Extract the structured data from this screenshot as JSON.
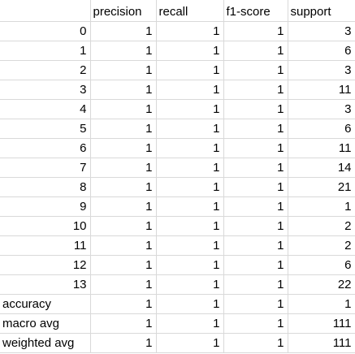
{
  "header": [
    "",
    "precision",
    "recall",
    "f1-score",
    "support"
  ],
  "rows": [
    {
      "label": "0",
      "precision": "1",
      "recall": "1",
      "f1": "1",
      "support": "3",
      "label_is_number": true
    },
    {
      "label": "1",
      "precision": "1",
      "recall": "1",
      "f1": "1",
      "support": "6",
      "label_is_number": true
    },
    {
      "label": "2",
      "precision": "1",
      "recall": "1",
      "f1": "1",
      "support": "3",
      "label_is_number": true
    },
    {
      "label": "3",
      "precision": "1",
      "recall": "1",
      "f1": "1",
      "support": "11",
      "label_is_number": true
    },
    {
      "label": "4",
      "precision": "1",
      "recall": "1",
      "f1": "1",
      "support": "3",
      "label_is_number": true
    },
    {
      "label": "5",
      "precision": "1",
      "recall": "1",
      "f1": "1",
      "support": "6",
      "label_is_number": true
    },
    {
      "label": "6",
      "precision": "1",
      "recall": "1",
      "f1": "1",
      "support": "11",
      "label_is_number": true
    },
    {
      "label": "7",
      "precision": "1",
      "recall": "1",
      "f1": "1",
      "support": "14",
      "label_is_number": true
    },
    {
      "label": "8",
      "precision": "1",
      "recall": "1",
      "f1": "1",
      "support": "21",
      "label_is_number": true
    },
    {
      "label": "9",
      "precision": "1",
      "recall": "1",
      "f1": "1",
      "support": "1",
      "label_is_number": true
    },
    {
      "label": "10",
      "precision": "1",
      "recall": "1",
      "f1": "1",
      "support": "2",
      "label_is_number": true
    },
    {
      "label": "11",
      "precision": "1",
      "recall": "1",
      "f1": "1",
      "support": "2",
      "label_is_number": true
    },
    {
      "label": "12",
      "precision": "1",
      "recall": "1",
      "f1": "1",
      "support": "6",
      "label_is_number": true
    },
    {
      "label": "13",
      "precision": "1",
      "recall": "1",
      "f1": "1",
      "support": "22",
      "label_is_number": true
    },
    {
      "label": "accuracy",
      "precision": "1",
      "recall": "1",
      "f1": "1",
      "support": "1",
      "label_is_number": false
    },
    {
      "label": "macro avg",
      "precision": "1",
      "recall": "1",
      "f1": "1",
      "support": "111",
      "label_is_number": false
    },
    {
      "label": "weighted avg",
      "precision": "1",
      "recall": "1",
      "f1": "1",
      "support": "111",
      "label_is_number": false
    }
  ],
  "colors": {
    "gridline": "#d9d9d9",
    "text": "#000000",
    "background": "#ffffff"
  }
}
